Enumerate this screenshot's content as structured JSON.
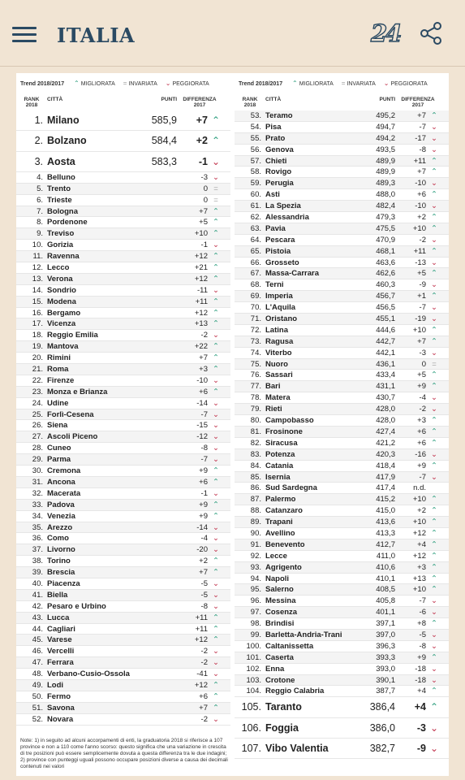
{
  "header": {
    "section_title": "ITALIA",
    "logo_text": "24",
    "menu_icon": "hamburger-menu-icon",
    "share_icon": "share-icon"
  },
  "colors": {
    "up": "#2a9d7c",
    "down": "#c0304a",
    "same": "#a0a0a0",
    "brand": "#2b4a63"
  },
  "legend": {
    "title": "Trend 2018/2017",
    "improved": "MIGLIORATA",
    "unchanged": "INVARIATA",
    "worse": "PEGGIORATA"
  },
  "columns": {
    "rank": "RANK",
    "rank_year": "2018",
    "city": "CITTÀ",
    "points": "PUNTI",
    "diff": "DIFFERENZA",
    "diff_year": "2017"
  },
  "left_rows": [
    {
      "rank": "1.",
      "city": "Milano",
      "points": "585,9",
      "diff": "+7",
      "trend": "up"
    },
    {
      "rank": "2.",
      "city": "Bolzano",
      "points": "584,4",
      "diff": "+2",
      "trend": "up"
    },
    {
      "rank": "3.",
      "city": "Aosta",
      "points": "583,3",
      "diff": "-1",
      "trend": "down"
    },
    {
      "rank": "4.",
      "city": "Belluno",
      "points": "",
      "diff": "-3",
      "trend": "down"
    },
    {
      "rank": "5.",
      "city": "Trento",
      "points": "",
      "diff": "0",
      "trend": "same"
    },
    {
      "rank": "6.",
      "city": "Trieste",
      "points": "",
      "diff": "0",
      "trend": "same"
    },
    {
      "rank": "7.",
      "city": "Bologna",
      "points": "",
      "diff": "+7",
      "trend": "up"
    },
    {
      "rank": "8.",
      "city": "Pordenone",
      "points": "",
      "diff": "+5",
      "trend": "up"
    },
    {
      "rank": "9.",
      "city": "Treviso",
      "points": "",
      "diff": "+10",
      "trend": "up"
    },
    {
      "rank": "10.",
      "city": "Gorizia",
      "points": "",
      "diff": "-1",
      "trend": "down"
    },
    {
      "rank": "11.",
      "city": "Ravenna",
      "points": "",
      "diff": "+12",
      "trend": "up"
    },
    {
      "rank": "12.",
      "city": "Lecco",
      "points": "",
      "diff": "+21",
      "trend": "up"
    },
    {
      "rank": "13.",
      "city": "Verona",
      "points": "",
      "diff": "+12",
      "trend": "up"
    },
    {
      "rank": "14.",
      "city": "Sondrio",
      "points": "",
      "diff": "-11",
      "trend": "down"
    },
    {
      "rank": "15.",
      "city": "Modena",
      "points": "",
      "diff": "+11",
      "trend": "up"
    },
    {
      "rank": "16.",
      "city": "Bergamo",
      "points": "",
      "diff": "+12",
      "trend": "up"
    },
    {
      "rank": "17.",
      "city": "Vicenza",
      "points": "",
      "diff": "+13",
      "trend": "up"
    },
    {
      "rank": "18.",
      "city": "Reggio Emilia",
      "points": "",
      "diff": "-2",
      "trend": "down"
    },
    {
      "rank": "19.",
      "city": "Mantova",
      "points": "",
      "diff": "+22",
      "trend": "up"
    },
    {
      "rank": "20.",
      "city": "Rimini",
      "points": "",
      "diff": "+7",
      "trend": "up"
    },
    {
      "rank": "21.",
      "city": "Roma",
      "points": "",
      "diff": "+3",
      "trend": "up"
    },
    {
      "rank": "22.",
      "city": "Firenze",
      "points": "",
      "diff": "-10",
      "trend": "down"
    },
    {
      "rank": "23.",
      "city": "Monza e Brianza",
      "points": "",
      "diff": "+6",
      "trend": "up"
    },
    {
      "rank": "24.",
      "city": "Udine",
      "points": "",
      "diff": "-14",
      "trend": "down"
    },
    {
      "rank": "25.",
      "city": "Forlì-Cesena",
      "points": "",
      "diff": "-7",
      "trend": "down"
    },
    {
      "rank": "26.",
      "city": "Siena",
      "points": "",
      "diff": "-15",
      "trend": "down"
    },
    {
      "rank": "27.",
      "city": "Ascoli Piceno",
      "points": "",
      "diff": "-12",
      "trend": "down"
    },
    {
      "rank": "28.",
      "city": "Cuneo",
      "points": "",
      "diff": "-8",
      "trend": "down"
    },
    {
      "rank": "29.",
      "city": "Parma",
      "points": "",
      "diff": "-7",
      "trend": "down"
    },
    {
      "rank": "30.",
      "city": "Cremona",
      "points": "",
      "diff": "+9",
      "trend": "up"
    },
    {
      "rank": "31.",
      "city": "Ancona",
      "points": "",
      "diff": "+6",
      "trend": "up"
    },
    {
      "rank": "32.",
      "city": "Macerata",
      "points": "",
      "diff": "-1",
      "trend": "down"
    },
    {
      "rank": "33.",
      "city": "Padova",
      "points": "",
      "diff": "+9",
      "trend": "up"
    },
    {
      "rank": "34.",
      "city": "Venezia",
      "points": "",
      "diff": "+9",
      "trend": "up"
    },
    {
      "rank": "35.",
      "city": "Arezzo",
      "points": "",
      "diff": "-14",
      "trend": "down"
    },
    {
      "rank": "36.",
      "city": "Como",
      "points": "",
      "diff": "-4",
      "trend": "down"
    },
    {
      "rank": "37.",
      "city": "Livorno",
      "points": "",
      "diff": "-20",
      "trend": "down"
    },
    {
      "rank": "38.",
      "city": "Torino",
      "points": "",
      "diff": "+2",
      "trend": "up"
    },
    {
      "rank": "39.",
      "city": "Brescia",
      "points": "",
      "diff": "+7",
      "trend": "up"
    },
    {
      "rank": "40.",
      "city": "Piacenza",
      "points": "",
      "diff": "-5",
      "trend": "down"
    },
    {
      "rank": "41.",
      "city": "Biella",
      "points": "",
      "diff": "-5",
      "trend": "down"
    },
    {
      "rank": "42.",
      "city": "Pesaro e Urbino",
      "points": "",
      "diff": "-8",
      "trend": "down"
    },
    {
      "rank": "43.",
      "city": "Lucca",
      "points": "",
      "diff": "+11",
      "trend": "up"
    },
    {
      "rank": "44.",
      "city": "Cagliari",
      "points": "",
      "diff": "+11",
      "trend": "up"
    },
    {
      "rank": "45.",
      "city": "Varese",
      "points": "",
      "diff": "+12",
      "trend": "up"
    },
    {
      "rank": "46.",
      "city": "Vercelli",
      "points": "",
      "diff": "-2",
      "trend": "down"
    },
    {
      "rank": "47.",
      "city": "Ferrara",
      "points": "",
      "diff": "-2",
      "trend": "down"
    },
    {
      "rank": "48.",
      "city": "Verbano-Cusio-Ossola",
      "points": "",
      "diff": "-41",
      "trend": "down"
    },
    {
      "rank": "49.",
      "city": "Lodi",
      "points": "",
      "diff": "+12",
      "trend": "up"
    },
    {
      "rank": "50.",
      "city": "Fermo",
      "points": "",
      "diff": "+6",
      "trend": "up"
    },
    {
      "rank": "51.",
      "city": "Savona",
      "points": "",
      "diff": "+7",
      "trend": "up"
    },
    {
      "rank": "52.",
      "city": "Novara",
      "points": "",
      "diff": "-2",
      "trend": "down"
    }
  ],
  "right_rows": [
    {
      "rank": "53.",
      "city": "Teramo",
      "points": "495,2",
      "diff": "+7",
      "trend": "up"
    },
    {
      "rank": "54.",
      "city": "Pisa",
      "points": "494,7",
      "diff": "-7",
      "trend": "down"
    },
    {
      "rank": "55.",
      "city": "Prato",
      "points": "494,2",
      "diff": "-17",
      "trend": "down"
    },
    {
      "rank": "56.",
      "city": "Genova",
      "points": "493,5",
      "diff": "-8",
      "trend": "down"
    },
    {
      "rank": "57.",
      "city": "Chieti",
      "points": "489,9",
      "diff": "+11",
      "trend": "up"
    },
    {
      "rank": "58.",
      "city": "Rovigo",
      "points": "489,9",
      "diff": "+7",
      "trend": "up"
    },
    {
      "rank": "59.",
      "city": "Perugia",
      "points": "489,3",
      "diff": "-10",
      "trend": "down"
    },
    {
      "rank": "60.",
      "city": "Asti",
      "points": "488,0",
      "diff": "+6",
      "trend": "up"
    },
    {
      "rank": "61.",
      "city": "La Spezia",
      "points": "482,4",
      "diff": "-10",
      "trend": "down"
    },
    {
      "rank": "62.",
      "city": "Alessandria",
      "points": "479,3",
      "diff": "+2",
      "trend": "up"
    },
    {
      "rank": "63.",
      "city": "Pavia",
      "points": "475,5",
      "diff": "+10",
      "trend": "up"
    },
    {
      "rank": "64.",
      "city": "Pescara",
      "points": "470,9",
      "diff": "-2",
      "trend": "down"
    },
    {
      "rank": "65.",
      "city": "Pistoia",
      "points": "468,1",
      "diff": "+11",
      "trend": "up"
    },
    {
      "rank": "66.",
      "city": "Grosseto",
      "points": "463,6",
      "diff": "-13",
      "trend": "down"
    },
    {
      "rank": "67.",
      "city": "Massa-Carrara",
      "points": "462,6",
      "diff": "+5",
      "trend": "up"
    },
    {
      "rank": "68.",
      "city": "Terni",
      "points": "460,3",
      "diff": "-9",
      "trend": "down"
    },
    {
      "rank": "69.",
      "city": "Imperia",
      "points": "456,7",
      "diff": "+1",
      "trend": "up"
    },
    {
      "rank": "70.",
      "city": "L'Aquila",
      "points": "456,5",
      "diff": "-7",
      "trend": "down"
    },
    {
      "rank": "71.",
      "city": "Oristano",
      "points": "455,1",
      "diff": "-19",
      "trend": "down"
    },
    {
      "rank": "72.",
      "city": "Latina",
      "points": "444,6",
      "diff": "+10",
      "trend": "up"
    },
    {
      "rank": "73.",
      "city": "Ragusa",
      "points": "442,7",
      "diff": "+7",
      "trend": "up"
    },
    {
      "rank": "74.",
      "city": "Viterbo",
      "points": "442,1",
      "diff": "-3",
      "trend": "down"
    },
    {
      "rank": "75.",
      "city": "Nuoro",
      "points": "436,1",
      "diff": "0",
      "trend": "same"
    },
    {
      "rank": "76.",
      "city": "Sassari",
      "points": "433,4",
      "diff": "+5",
      "trend": "up"
    },
    {
      "rank": "77.",
      "city": "Bari",
      "points": "431,1",
      "diff": "+9",
      "trend": "up"
    },
    {
      "rank": "78.",
      "city": "Matera",
      "points": "430,7",
      "diff": "-4",
      "trend": "down"
    },
    {
      "rank": "79.",
      "city": "Rieti",
      "points": "428,0",
      "diff": "-2",
      "trend": "down"
    },
    {
      "rank": "80.",
      "city": "Campobasso",
      "points": "428,0",
      "diff": "+3",
      "trend": "up"
    },
    {
      "rank": "81.",
      "city": "Frosinone",
      "points": "427,4",
      "diff": "+6",
      "trend": "up"
    },
    {
      "rank": "82.",
      "city": "Siracusa",
      "points": "421,2",
      "diff": "+6",
      "trend": "up"
    },
    {
      "rank": "83.",
      "city": "Potenza",
      "points": "420,3",
      "diff": "-16",
      "trend": "down"
    },
    {
      "rank": "84.",
      "city": "Catania",
      "points": "418,4",
      "diff": "+9",
      "trend": "up"
    },
    {
      "rank": "85.",
      "city": "Isernia",
      "points": "417,9",
      "diff": "-7",
      "trend": "down"
    },
    {
      "rank": "86.",
      "city": "Sud Sardegna",
      "points": "417,4",
      "diff": "n.d.",
      "trend": "none"
    },
    {
      "rank": "87.",
      "city": "Palermo",
      "points": "415,2",
      "diff": "+10",
      "trend": "up"
    },
    {
      "rank": "88.",
      "city": "Catanzaro",
      "points": "415,0",
      "diff": "+2",
      "trend": "up"
    },
    {
      "rank": "89.",
      "city": "Trapani",
      "points": "413,6",
      "diff": "+10",
      "trend": "up"
    },
    {
      "rank": "90.",
      "city": "Avellino",
      "points": "413,3",
      "diff": "+12",
      "trend": "up"
    },
    {
      "rank": "91.",
      "city": "Benevento",
      "points": "412,7",
      "diff": "+4",
      "trend": "up"
    },
    {
      "rank": "92.",
      "city": "Lecce",
      "points": "411,0",
      "diff": "+12",
      "trend": "up"
    },
    {
      "rank": "93.",
      "city": "Agrigento",
      "points": "410,6",
      "diff": "+3",
      "trend": "up"
    },
    {
      "rank": "94.",
      "city": "Napoli",
      "points": "410,1",
      "diff": "+13",
      "trend": "up"
    },
    {
      "rank": "95.",
      "city": "Salerno",
      "points": "408,5",
      "diff": "+10",
      "trend": "up"
    },
    {
      "rank": "96.",
      "city": "Messina",
      "points": "405,8",
      "diff": "-7",
      "trend": "down"
    },
    {
      "rank": "97.",
      "city": "Cosenza",
      "points": "401,1",
      "diff": "-6",
      "trend": "down"
    },
    {
      "rank": "98.",
      "city": "Brindisi",
      "points": "397,1",
      "diff": "+8",
      "trend": "up"
    },
    {
      "rank": "99.",
      "city": "Barletta-Andria-Trani",
      "points": "397,0",
      "diff": "-5",
      "trend": "down"
    },
    {
      "rank": "100.",
      "city": "Caltanissetta",
      "points": "396,3",
      "diff": "-8",
      "trend": "down"
    },
    {
      "rank": "101.",
      "city": "Caserta",
      "points": "393,3",
      "diff": "+9",
      "trend": "up"
    },
    {
      "rank": "102.",
      "city": "Enna",
      "points": "393,0",
      "diff": "-18",
      "trend": "down"
    },
    {
      "rank": "103.",
      "city": "Crotone",
      "points": "390,1",
      "diff": "-18",
      "trend": "down"
    },
    {
      "rank": "104.",
      "city": "Reggio Calabria",
      "points": "387,7",
      "diff": "+4",
      "trend": "up"
    },
    {
      "rank": "105.",
      "city": "Taranto",
      "points": "386,4",
      "diff": "+4",
      "trend": "up"
    },
    {
      "rank": "106.",
      "city": "Foggia",
      "points": "386,0",
      "diff": "-3",
      "trend": "down"
    },
    {
      "rank": "107.",
      "city": "Vibo Valentia",
      "points": "382,7",
      "diff": "-9",
      "trend": "down"
    }
  ],
  "note": "Note: 1) in seguito ad alcuni accorpamenti di enti, la graduatoria 2018 si riferisce a 107 province e non a 110 come l'anno scorso: questo significa che una variazione in crescita di tre posizioni può essere semplicemente dovuta a questa differenza tra le due indagini; 2) province con punteggi uguali possono occupare posizioni diverse a causa dei decimali contenuti nei valori"
}
